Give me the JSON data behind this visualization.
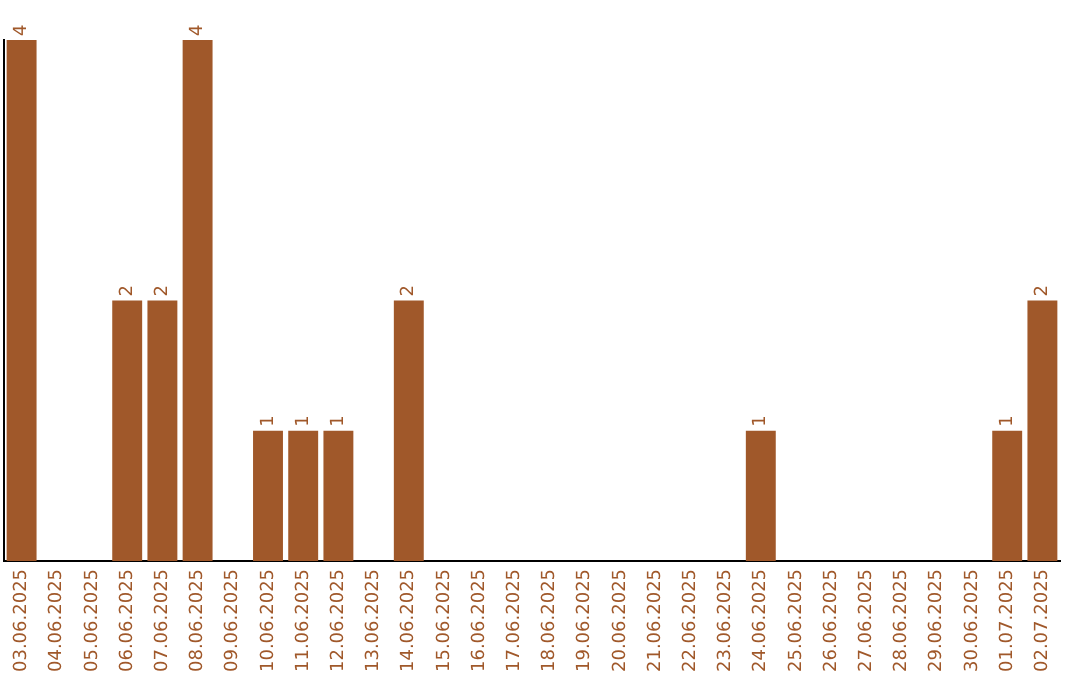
{
  "chart_data": {
    "type": "bar",
    "categories": [
      "03.06.2025",
      "04.06.2025",
      "05.06.2025",
      "06.06.2025",
      "07.06.2025",
      "08.06.2025",
      "09.06.2025",
      "10.06.2025",
      "11.06.2025",
      "12.06.2025",
      "13.06.2025",
      "14.06.2025",
      "15.06.2025",
      "16.06.2025",
      "17.06.2025",
      "18.06.2025",
      "19.06.2025",
      "20.06.2025",
      "21.06.2025",
      "22.06.2025",
      "23.06.2025",
      "24.06.2025",
      "25.06.2025",
      "26.06.2025",
      "27.06.2025",
      "28.06.2025",
      "29.06.2025",
      "30.06.2025",
      "01.07.2025",
      "02.07.2025"
    ],
    "values": [
      4,
      0,
      0,
      2,
      2,
      4,
      0,
      1,
      1,
      1,
      0,
      2,
      0,
      0,
      0,
      0,
      0,
      0,
      0,
      0,
      0,
      1,
      0,
      0,
      0,
      0,
      0,
      0,
      1,
      2
    ],
    "value_labels": [
      "4",
      null,
      null,
      "2",
      "2",
      "4",
      null,
      "1",
      "1",
      "1",
      null,
      "2",
      null,
      null,
      null,
      null,
      null,
      null,
      null,
      null,
      null,
      "1",
      null,
      null,
      null,
      null,
      null,
      null,
      "1",
      "2"
    ],
    "color": "#a0582a",
    "grid": false,
    "legend": false
  }
}
